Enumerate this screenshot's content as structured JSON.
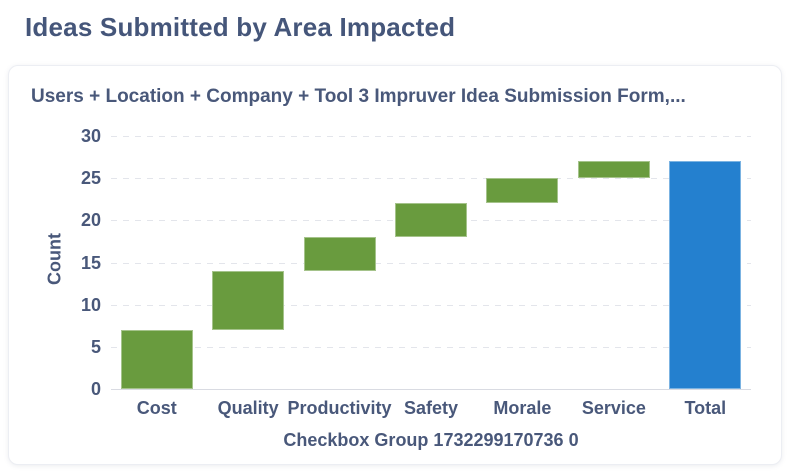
{
  "page": {
    "title": "Ideas Submitted by Area Impacted"
  },
  "chart_data": {
    "type": "bar",
    "subtype": "waterfall",
    "title": "Users + Location + Company + Tool 3 Impruver Idea Submission Form,...",
    "xlabel": "Checkbox Group 1732299170736 0",
    "ylabel": "Count",
    "ylim": [
      0,
      30
    ],
    "yticks": [
      0,
      5,
      10,
      15,
      20,
      25,
      30
    ],
    "grid": "horizontal-dashed",
    "legend": "none",
    "categories": [
      "Cost",
      "Quality",
      "Productivity",
      "Safety",
      "Morale",
      "Service",
      "Total"
    ],
    "segments": [
      {
        "category": "Cost",
        "start": 0,
        "end": 7,
        "value": 7,
        "kind": "increase"
      },
      {
        "category": "Quality",
        "start": 7,
        "end": 14,
        "value": 7,
        "kind": "increase"
      },
      {
        "category": "Productivity",
        "start": 14,
        "end": 18,
        "value": 4,
        "kind": "increase"
      },
      {
        "category": "Safety",
        "start": 18,
        "end": 22,
        "value": 4,
        "kind": "increase"
      },
      {
        "category": "Morale",
        "start": 22,
        "end": 25,
        "value": 3,
        "kind": "increase"
      },
      {
        "category": "Service",
        "start": 25,
        "end": 27,
        "value": 2,
        "kind": "increase"
      },
      {
        "category": "Total",
        "start": 0,
        "end": 27,
        "value": 27,
        "kind": "total"
      }
    ],
    "colors": {
      "increase": "#699b3e",
      "total": "#2480cf",
      "text": "#49587a",
      "gridline": "#e3e5eb",
      "axis_line": "#d9dbe2"
    }
  }
}
